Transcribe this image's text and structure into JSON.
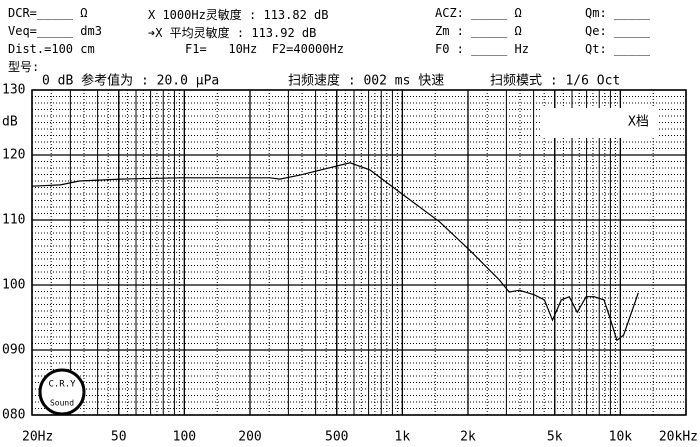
{
  "header": {
    "rows": [
      [
        "DCR=_____ Ω",
        "X 1000Hz灵敏度 : 113.82 dB",
        "ACZ: _____ Ω",
        "Qm: _____"
      ],
      [
        "Veq=_____ dm3",
        "➔X 平均灵敏度 : 113.92 dB",
        "Zm : _____ Ω",
        "Qe: _____"
      ],
      [
        "Dist.=100 cm",
        "F1=   10Hz  F2=40000Hz",
        "F0 : _____ Hz",
        "Qt: _____"
      ],
      [
        "型号:"
      ]
    ]
  },
  "chart_data": {
    "type": "line",
    "annotations": [
      "0 dB 参考值为 : 20.0 μPa",
      "扫频速度 : 002 ms 快速",
      "扫频模式 : 1/6 Oct"
    ],
    "range_label": "X档",
    "ylabel": "dB",
    "logo": {
      "top": "C.R.Y",
      "bottom": "Sound"
    },
    "color": "#000000",
    "x": [
      20,
      27,
      33,
      51,
      96,
      247,
      274,
      339,
      575,
      710,
      1084,
      1484,
      2030,
      2780,
      3090,
      3440,
      4030,
      4480,
      4880,
      5360,
      5830,
      6340,
      6970,
      7580,
      8410,
      8960,
      9640,
      10350,
      12080
    ],
    "values": [
      115.2,
      115.4,
      116.0,
      116.3,
      116.5,
      116.5,
      116.3,
      116.9,
      118.8,
      117.7,
      113.1,
      109.7,
      105.4,
      100.8,
      98.9,
      99.2,
      98.5,
      97.7,
      94.6,
      97.7,
      98.2,
      95.8,
      98.2,
      98.2,
      97.7,
      94.9,
      91.5,
      92.3,
      98.8
    ],
    "xlog": true,
    "xlim": [
      20,
      20000
    ],
    "xticks": [
      {
        "value": 20,
        "label": "20Hz"
      },
      50,
      100,
      200,
      500,
      {
        "value": 1000,
        "label": "1k"
      },
      {
        "value": 2000,
        "label": "2k"
      },
      {
        "value": 5000,
        "label": "5k"
      },
      {
        "value": 10000,
        "label": "10k"
      },
      {
        "value": 20000,
        "label": "20kHz"
      }
    ],
    "ylim": [
      80,
      130
    ],
    "yticks": [
      {
        "value": 80,
        "label": "080"
      },
      {
        "value": 90,
        "label": "090"
      },
      100,
      110,
      120,
      130
    ],
    "grid": true
  }
}
